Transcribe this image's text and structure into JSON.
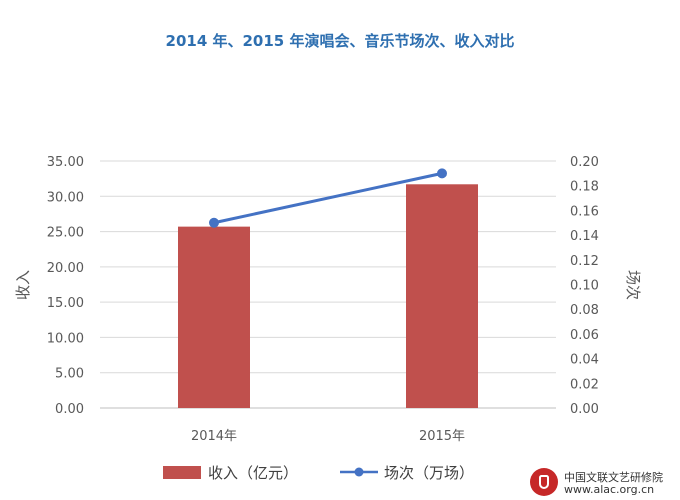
{
  "chart_data": {
    "type": "bar",
    "title": "2014 年、2015 年演唱会、音乐节场次、收入对比",
    "categories": [
      "2014年",
      "2015年"
    ],
    "series": [
      {
        "name": "收入（亿元）",
        "type": "bar",
        "axis": "left",
        "values": [
          25.7,
          31.7
        ],
        "color": "#c0504d"
      },
      {
        "name": "场次（万场）",
        "type": "line",
        "axis": "right",
        "values": [
          0.15,
          0.19
        ],
        "color": "#4472c4"
      }
    ],
    "ylabel": "收入",
    "y2label": "场次",
    "ylim": [
      0,
      35
    ],
    "y2lim": [
      0,
      0.2
    ],
    "yticks": [
      "0.00",
      "5.00",
      "10.00",
      "15.00",
      "20.00",
      "25.00",
      "30.00",
      "35.00"
    ],
    "y2ticks": [
      "0.00",
      "0.02",
      "0.04",
      "0.06",
      "0.08",
      "0.10",
      "0.12",
      "0.14",
      "0.16",
      "0.18",
      "0.20"
    ],
    "grid": true,
    "legend": "bottom"
  },
  "watermark": {
    "org": "中国文联文艺研修院",
    "url": "www.alac.org.cn"
  }
}
